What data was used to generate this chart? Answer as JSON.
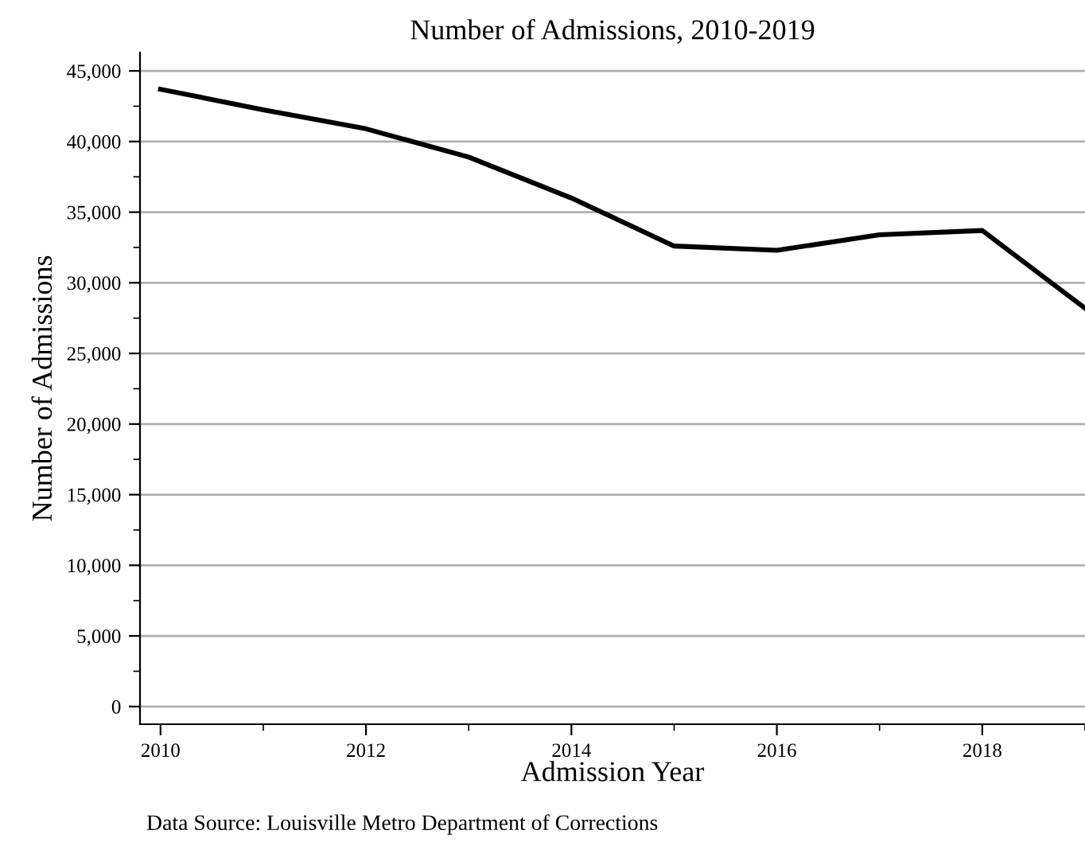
{
  "chart_data": {
    "type": "line",
    "title": "Number of Admissions, 2010-2019",
    "xlabel": "Admission Year",
    "ylabel": "Number of Admissions",
    "annotations": [
      "Data Source: Louisville Metro Department of Corrections"
    ],
    "x": [
      2010,
      2011,
      2012,
      2013,
      2014,
      2015,
      2016,
      2017,
      2018,
      2019
    ],
    "series": [
      {
        "color": "#000000",
        "values": [
          43700,
          42250,
          40900,
          38900,
          36000,
          32600,
          32300,
          33400,
          33700,
          28200
        ]
      }
    ],
    "xlim": [
      2009.8,
      2019
    ],
    "ylim": [
      -1250,
      46300
    ],
    "xticks": [
      2010,
      2012,
      2014,
      2016,
      2018
    ],
    "yticks": [
      {
        "value": 0,
        "label": "0"
      },
      {
        "value": 5000,
        "label": "5,000"
      },
      {
        "value": 10000,
        "label": "10,000"
      },
      {
        "value": 15000,
        "label": "15,000"
      },
      {
        "value": 20000,
        "label": "20,000"
      },
      {
        "value": 25000,
        "label": "25,000"
      },
      {
        "value": 30000,
        "label": "30,000"
      },
      {
        "value": 35000,
        "label": "35,000"
      },
      {
        "value": 40000,
        "label": "40,000"
      },
      {
        "value": 45000,
        "label": "45,000"
      }
    ],
    "grid": "y",
    "legend": false,
    "marker": "none",
    "line_style": "solid"
  }
}
